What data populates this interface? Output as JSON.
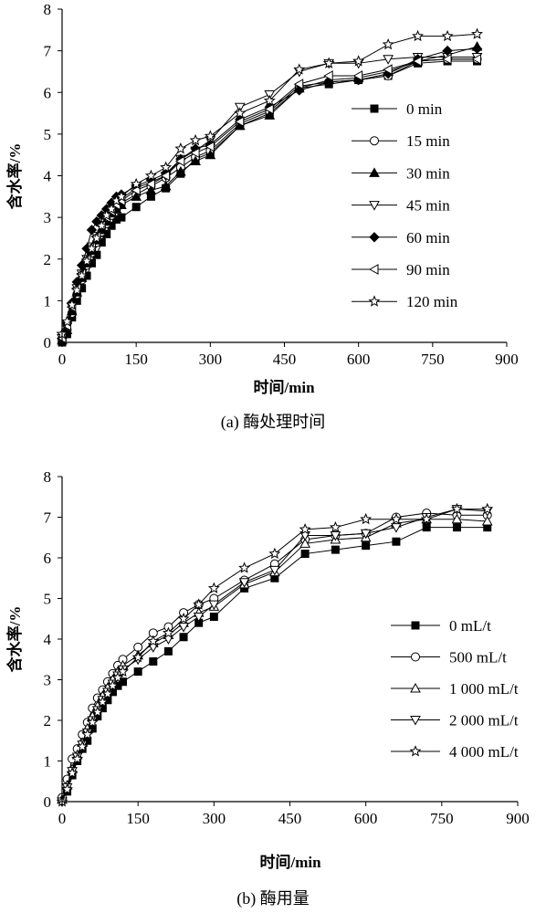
{
  "chart_data": [
    {
      "type": "line",
      "caption": "(a) 酶处理时间",
      "xlabel": "时间/min",
      "ylabel": "含水率/%",
      "xlim": [
        0,
        900
      ],
      "ylim": [
        0,
        8
      ],
      "xticks": [
        0,
        150,
        300,
        450,
        600,
        750,
        900
      ],
      "yticks": [
        0,
        1,
        2,
        3,
        4,
        5,
        6,
        7,
        8
      ],
      "grid": false,
      "legend_position": "right",
      "x": [
        0,
        10,
        20,
        30,
        40,
        50,
        60,
        70,
        80,
        90,
        100,
        110,
        120,
        150,
        180,
        210,
        240,
        270,
        300,
        360,
        420,
        480,
        540,
        600,
        660,
        720,
        780,
        840
      ],
      "series": [
        {
          "name": "0 min",
          "marker": "square-filled",
          "values": [
            0.0,
            0.2,
            0.6,
            1.0,
            1.3,
            1.6,
            1.9,
            2.1,
            2.4,
            2.6,
            2.8,
            2.95,
            3.0,
            3.25,
            3.5,
            3.7,
            4.05,
            4.4,
            4.55,
            5.2,
            5.5,
            6.1,
            6.2,
            6.3,
            6.4,
            6.7,
            6.75,
            6.75
          ]
        },
        {
          "name": "15 min",
          "marker": "circle-open",
          "values": [
            0.05,
            0.3,
            0.7,
            1.15,
            1.5,
            1.85,
            2.15,
            2.4,
            2.65,
            2.85,
            3.05,
            3.2,
            3.35,
            3.55,
            3.75,
            3.95,
            4.2,
            4.45,
            4.6,
            5.25,
            5.55,
            6.15,
            6.25,
            6.3,
            6.4,
            6.75,
            6.8,
            6.8
          ]
        },
        {
          "name": "30 min",
          "marker": "triangle-filled",
          "values": [
            0.05,
            0.3,
            0.75,
            1.2,
            1.55,
            1.9,
            2.2,
            2.45,
            2.7,
            2.9,
            3.1,
            3.2,
            3.3,
            3.5,
            3.65,
            3.75,
            4.1,
            4.35,
            4.5,
            5.2,
            5.45,
            6.1,
            6.3,
            6.35,
            6.5,
            6.75,
            6.9,
            7.1
          ]
        },
        {
          "name": "45 min",
          "marker": "triangle-down-open",
          "values": [
            0.1,
            0.4,
            0.85,
            1.3,
            1.65,
            2.0,
            2.3,
            2.55,
            2.8,
            3.0,
            3.2,
            3.35,
            3.45,
            3.7,
            3.85,
            4.0,
            4.4,
            4.6,
            4.85,
            5.65,
            5.95,
            6.5,
            6.7,
            6.7,
            6.8,
            6.85,
            6.85,
            6.85
          ]
        },
        {
          "name": "60 min",
          "marker": "diamond-filled",
          "values": [
            0.1,
            0.45,
            0.95,
            1.45,
            1.85,
            2.25,
            2.7,
            2.9,
            3.05,
            3.2,
            3.35,
            3.5,
            3.55,
            3.75,
            3.9,
            4.05,
            4.4,
            4.65,
            4.75,
            5.35,
            5.65,
            6.05,
            6.25,
            6.3,
            6.45,
            6.8,
            7.0,
            7.05
          ]
        },
        {
          "name": "90 min",
          "marker": "triangle-left-open",
          "values": [
            0.1,
            0.4,
            0.85,
            1.3,
            1.65,
            2.0,
            2.3,
            2.55,
            2.8,
            3.0,
            3.15,
            3.3,
            3.4,
            3.65,
            3.8,
            4.0,
            4.35,
            4.55,
            4.7,
            5.3,
            5.6,
            6.2,
            6.4,
            6.4,
            6.55,
            6.75,
            6.8,
            6.8
          ]
        },
        {
          "name": "120 min",
          "marker": "star-open",
          "values": [
            0.2,
            0.5,
            0.9,
            1.25,
            1.6,
            1.95,
            2.25,
            2.5,
            2.8,
            3.05,
            3.2,
            3.4,
            3.5,
            3.8,
            4.0,
            4.2,
            4.65,
            4.85,
            4.95,
            5.5,
            5.8,
            6.55,
            6.7,
            6.75,
            7.15,
            7.35,
            7.35,
            7.4
          ]
        }
      ]
    },
    {
      "type": "line",
      "caption": "(b) 酶用量",
      "xlabel": "时间/min",
      "ylabel": "含水率/%",
      "xlim": [
        0,
        900
      ],
      "ylim": [
        0,
        8
      ],
      "xticks": [
        0,
        150,
        300,
        450,
        600,
        750,
        900
      ],
      "yticks": [
        0,
        1,
        2,
        3,
        4,
        5,
        6,
        7,
        8
      ],
      "grid": false,
      "legend_position": "right",
      "x": [
        0,
        10,
        20,
        30,
        40,
        50,
        60,
        70,
        80,
        90,
        100,
        110,
        120,
        150,
        180,
        210,
        240,
        270,
        300,
        360,
        420,
        480,
        540,
        600,
        660,
        720,
        780,
        840
      ],
      "series": [
        {
          "name": "0 mL/t",
          "marker": "square-filled",
          "values": [
            0.05,
            0.25,
            0.65,
            1.0,
            1.3,
            1.5,
            1.8,
            2.1,
            2.3,
            2.5,
            2.7,
            2.85,
            2.95,
            3.2,
            3.45,
            3.7,
            4.05,
            4.4,
            4.55,
            5.25,
            5.5,
            6.1,
            6.2,
            6.3,
            6.4,
            6.75,
            6.75,
            6.75
          ]
        },
        {
          "name": "500 mL/t",
          "marker": "circle-open",
          "values": [
            0.1,
            0.55,
            1.05,
            1.3,
            1.65,
            1.95,
            2.3,
            2.55,
            2.75,
            2.95,
            3.15,
            3.35,
            3.5,
            3.8,
            4.15,
            4.3,
            4.65,
            4.85,
            5.0,
            5.45,
            5.85,
            6.45,
            6.55,
            6.6,
            7.0,
            7.1,
            7.05,
            7.05
          ]
        },
        {
          "name": "1 000 mL/t",
          "marker": "triangle-open",
          "values": [
            0.05,
            0.4,
            0.8,
            1.15,
            1.45,
            1.8,
            2.1,
            2.35,
            2.6,
            2.8,
            3.0,
            3.2,
            3.35,
            3.6,
            3.9,
            4.1,
            4.4,
            4.65,
            4.8,
            5.35,
            5.65,
            6.35,
            6.45,
            6.5,
            6.85,
            6.95,
            6.95,
            6.9
          ]
        },
        {
          "name": "2 000 mL/t",
          "marker": "triangle-down-open",
          "values": [
            0.0,
            0.35,
            0.75,
            1.1,
            1.4,
            1.7,
            2.0,
            2.25,
            2.5,
            2.7,
            2.9,
            3.1,
            3.25,
            3.5,
            3.8,
            4.0,
            4.3,
            4.55,
            4.85,
            5.4,
            5.7,
            6.55,
            6.55,
            6.6,
            6.75,
            7.0,
            7.2,
            7.15
          ]
        },
        {
          "name": "4 000 mL/t",
          "marker": "star-open",
          "values": [
            0.0,
            0.3,
            0.7,
            1.05,
            1.35,
            1.65,
            1.95,
            2.2,
            2.45,
            2.65,
            2.85,
            3.05,
            3.2,
            3.55,
            3.95,
            4.15,
            4.5,
            4.85,
            5.25,
            5.75,
            6.1,
            6.7,
            6.75,
            6.95,
            6.95,
            6.95,
            7.2,
            7.2
          ]
        }
      ]
    }
  ]
}
